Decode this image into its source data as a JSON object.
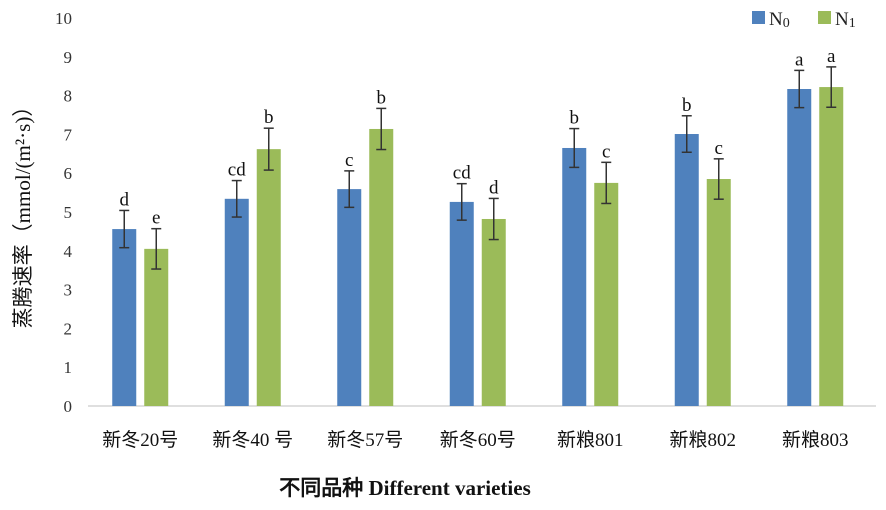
{
  "chart_data": {
    "type": "bar",
    "title": "",
    "xlabel": "不同品种 Different varieties",
    "ylabel": "蒸腾速率（mmol/(m²·s)）",
    "ylim": [
      0,
      10
    ],
    "yticks": [
      "0",
      "1",
      "2",
      "3",
      "4",
      "5",
      "6",
      "7",
      "8",
      "9",
      "10"
    ],
    "categories": [
      "新冬20号",
      "新冬40 号",
      "新冬57号",
      "新冬60号",
      "新粮801",
      "新粮802",
      "新粮803"
    ],
    "legend_position": "top-right",
    "series": [
      {
        "name": "N0",
        "sub": "0",
        "base": "N",
        "color": "#4f81bd",
        "values": [
          4.56,
          5.34,
          5.59,
          5.26,
          6.65,
          7.01,
          8.17
        ],
        "errors": [
          0.48,
          0.47,
          0.47,
          0.47,
          0.5,
          0.47,
          0.48
        ],
        "labels": [
          "d",
          "cd",
          "c",
          "cd",
          "b",
          "b",
          "a"
        ]
      },
      {
        "name": "N1",
        "sub": "1",
        "base": "N",
        "color": "#9bbb59",
        "values": [
          4.05,
          6.62,
          7.14,
          4.82,
          5.75,
          5.85,
          8.22
        ],
        "errors": [
          0.52,
          0.54,
          0.53,
          0.53,
          0.53,
          0.52,
          0.52
        ],
        "labels": [
          "e",
          "b",
          "b",
          "d",
          "c",
          "c",
          "a"
        ]
      }
    ]
  }
}
